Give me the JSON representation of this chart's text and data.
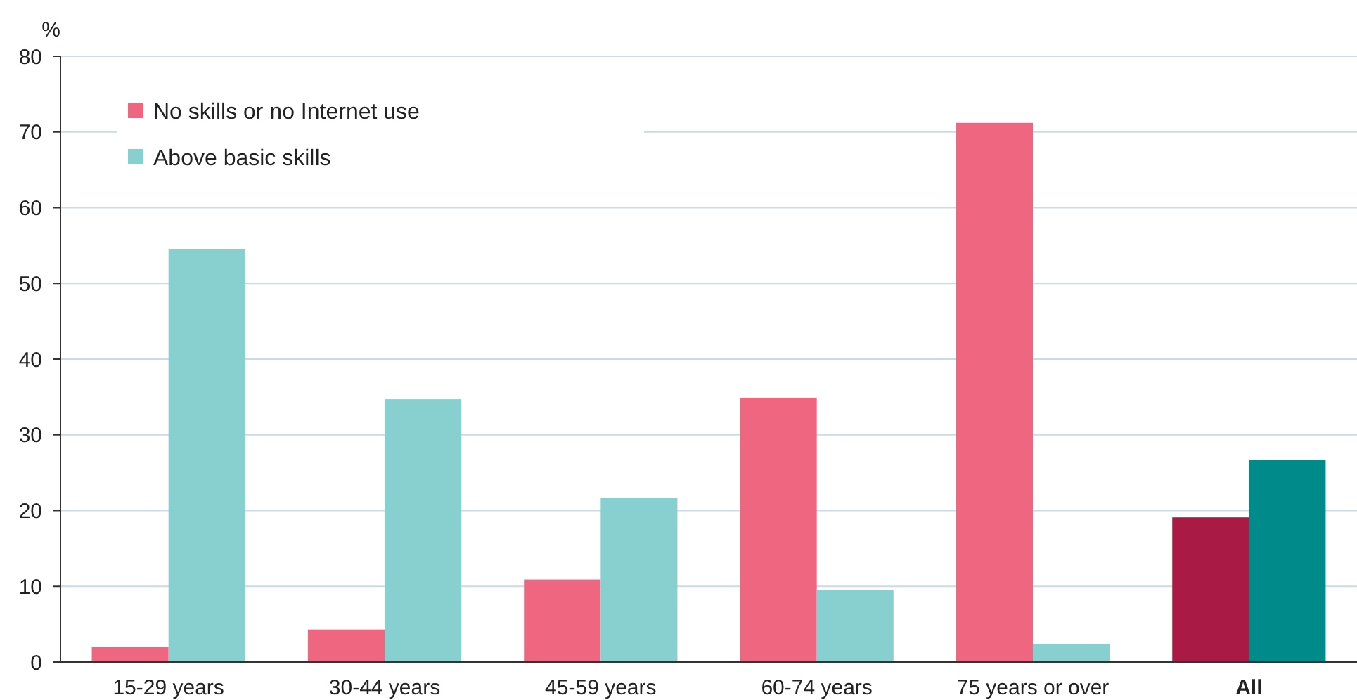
{
  "chart_data": {
    "type": "bar",
    "ylabel": "%",
    "categories": [
      "15-29 years",
      "30-44 years",
      "45-59 years",
      "60-74 years",
      "75 years or over",
      "All"
    ],
    "series": [
      {
        "name": "No skills or no Internet use",
        "color": "#ee6680",
        "colors": [
          "#ee6680",
          "#ee6680",
          "#ee6680",
          "#ee6680",
          "#ee6680",
          "#a91b45"
        ],
        "values": [
          2.0,
          4.3,
          10.9,
          34.9,
          71.2,
          19.1
        ]
      },
      {
        "name": "Above basic skills",
        "color": "#88cfcf",
        "colors": [
          "#88cfcf",
          "#88cfcf",
          "#88cfcf",
          "#88cfcf",
          "#88cfcf",
          "#008b8b"
        ],
        "values": [
          54.5,
          34.7,
          21.7,
          9.5,
          2.4,
          26.7
        ]
      }
    ],
    "ylim": [
      0,
      80
    ],
    "yticks": [
      0,
      10,
      20,
      30,
      40,
      50,
      60,
      70,
      80
    ],
    "grid": "y",
    "legend": "top left"
  }
}
